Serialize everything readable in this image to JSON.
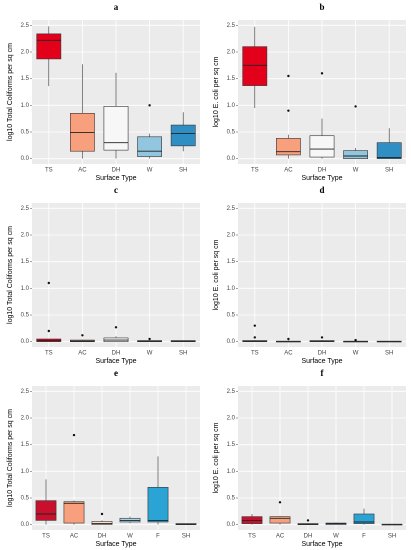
{
  "chart_data": [
    {
      "type": "box",
      "title": "a",
      "ylabel": "log10 Total Coliforms per sq cm",
      "xlabel": "Surface Type",
      "categories": [
        "TS",
        "AC",
        "DH",
        "W",
        "SH"
      ],
      "colors": [
        "#e3001b",
        "#f8a07e",
        "#f7f7f7",
        "#92c5de",
        "#2f8fc4"
      ],
      "boxes": [
        {
          "min": 1.36,
          "q1": 1.87,
          "median": 2.22,
          "q3": 2.34,
          "max": 2.48,
          "outliers": []
        },
        {
          "min": 0,
          "q1": 0.14,
          "median": 0.49,
          "q3": 0.85,
          "max": 1.77,
          "outliers": []
        },
        {
          "min": 0,
          "q1": 0.16,
          "median": 0.3,
          "q3": 0.98,
          "max": 1.61,
          "outliers": []
        },
        {
          "min": 0,
          "q1": 0.04,
          "median": 0.14,
          "q3": 0.41,
          "max": 0.47,
          "outliers": [
            1.0
          ]
        },
        {
          "min": 0.14,
          "q1": 0.24,
          "median": 0.47,
          "q3": 0.63,
          "max": 0.87,
          "outliers": []
        }
      ],
      "ylim": [
        -0.1,
        2.6
      ],
      "yticks": [
        {
          "value": 0,
          "label": "0.0"
        },
        {
          "value": 0.5,
          "label": "0.5"
        },
        {
          "value": 1,
          "label": "1.0"
        },
        {
          "value": 1.5,
          "label": "1.5"
        },
        {
          "value": 2,
          "label": "2.0"
        },
        {
          "value": 2.5,
          "label": "2.5"
        }
      ],
      "grid": true
    },
    {
      "type": "box",
      "title": "b",
      "ylabel": "log10 E. coli per sq cm",
      "xlabel": "Surface Type",
      "categories": [
        "TS",
        "AC",
        "DH",
        "W",
        "SH"
      ],
      "colors": [
        "#e3001b",
        "#f8a07e",
        "#f7f7f7",
        "#92c5de",
        "#2f8fc4"
      ],
      "boxes": [
        {
          "min": 0.95,
          "q1": 1.37,
          "median": 1.75,
          "q3": 2.1,
          "max": 2.47,
          "outliers": []
        },
        {
          "min": 0,
          "q1": 0.07,
          "median": 0.13,
          "q3": 0.38,
          "max": 0.45,
          "outliers": [
            1.55,
            0.9
          ]
        },
        {
          "min": 0,
          "q1": 0.03,
          "median": 0.18,
          "q3": 0.43,
          "max": 0.75,
          "outliers": [
            1.6
          ]
        },
        {
          "min": 0,
          "q1": 0,
          "median": 0.05,
          "q3": 0.15,
          "max": 0.2,
          "outliers": [
            0.98
          ]
        },
        {
          "min": 0,
          "q1": 0,
          "median": 0.02,
          "q3": 0.3,
          "max": 0.57,
          "outliers": []
        }
      ],
      "ylim": [
        -0.1,
        2.6
      ],
      "yticks": [
        {
          "value": 0,
          "label": "0.0"
        },
        {
          "value": 0.5,
          "label": "0.5"
        },
        {
          "value": 1,
          "label": "1.0"
        },
        {
          "value": 1.5,
          "label": "1.5"
        },
        {
          "value": 2,
          "label": "2.0"
        },
        {
          "value": 2.5,
          "label": "2.5"
        }
      ],
      "grid": true
    },
    {
      "type": "box",
      "title": "c",
      "ylabel": "log10 Total Coliforms per sq cm",
      "xlabel": "Surface Type",
      "categories": [
        "TS",
        "AC",
        "DH",
        "W",
        "SH"
      ],
      "colors": [
        "#e3001b",
        "#f8a07e",
        "#f7f7f7",
        "#92c5de",
        "#2f8fc4"
      ],
      "boxes": [
        {
          "min": 0,
          "q1": 0,
          "median": 0.02,
          "q3": 0.05,
          "max": 0.05,
          "outliers": [
            1.1,
            0.2
          ]
        },
        {
          "min": 0,
          "q1": 0,
          "median": 0.01,
          "q3": 0.03,
          "max": 0.04,
          "outliers": [
            0.12
          ]
        },
        {
          "min": 0,
          "q1": 0,
          "median": 0.03,
          "q3": 0.07,
          "max": 0.1,
          "outliers": [
            0.27
          ]
        },
        {
          "min": 0,
          "q1": 0,
          "median": 0.01,
          "q3": 0.02,
          "max": 0.02,
          "outliers": [
            0.05
          ]
        },
        {
          "min": 0,
          "q1": 0,
          "median": 0.01,
          "q3": 0.02,
          "max": 0.02,
          "outliers": []
        }
      ],
      "ylim": [
        -0.1,
        2.6
      ],
      "yticks": [
        {
          "value": 0,
          "label": "0.0"
        },
        {
          "value": 0.5,
          "label": "0.5"
        },
        {
          "value": 1,
          "label": "1.0"
        },
        {
          "value": 1.5,
          "label": "1.5"
        },
        {
          "value": 2,
          "label": "2.0"
        },
        {
          "value": 2.5,
          "label": "2.5"
        }
      ],
      "grid": true
    },
    {
      "type": "box",
      "title": "d",
      "ylabel": "log10 E. coli per sq cm",
      "xlabel": "Surface Type",
      "categories": [
        "TS",
        "AC",
        "DH",
        "W",
        "SH"
      ],
      "colors": [
        "#e3001b",
        "#f8a07e",
        "#f7f7f7",
        "#92c5de",
        "#2f8fc4"
      ],
      "boxes": [
        {
          "min": 0,
          "q1": 0,
          "median": 0.01,
          "q3": 0.02,
          "max": 0.03,
          "outliers": [
            0.3,
            0.08
          ]
        },
        {
          "min": 0,
          "q1": 0,
          "median": 0,
          "q3": 0.01,
          "max": 0.02,
          "outliers": [
            0.05
          ]
        },
        {
          "min": 0,
          "q1": 0,
          "median": 0.01,
          "q3": 0.02,
          "max": 0.03,
          "outliers": [
            0.08
          ]
        },
        {
          "min": 0,
          "q1": 0,
          "median": 0,
          "q3": 0.01,
          "max": 0.01,
          "outliers": [
            0.03
          ]
        },
        {
          "min": 0,
          "q1": 0,
          "median": 0,
          "q3": 0.01,
          "max": 0.01,
          "outliers": []
        }
      ],
      "ylim": [
        -0.1,
        2.6
      ],
      "yticks": [
        {
          "value": 0,
          "label": "0.0"
        },
        {
          "value": 0.5,
          "label": "0.5"
        },
        {
          "value": 1,
          "label": "1.0"
        },
        {
          "value": 1.5,
          "label": "1.5"
        },
        {
          "value": 2,
          "label": "2.0"
        },
        {
          "value": 2.5,
          "label": "2.5"
        }
      ],
      "grid": true
    },
    {
      "type": "box",
      "title": "e",
      "ylabel": "log10 Total Coliforms per sq cm",
      "xlabel": "Surface Type",
      "categories": [
        "TS",
        "AC",
        "DH",
        "W",
        "F",
        "SH"
      ],
      "colors": [
        "#c8102e",
        "#f8a07e",
        "#fde0cf",
        "#a6d0e4",
        "#2ba3d4",
        "#e6e6e6"
      ],
      "boxes": [
        {
          "min": 0,
          "q1": 0.08,
          "median": 0.2,
          "q3": 0.45,
          "max": 0.85,
          "outliers": []
        },
        {
          "min": 0,
          "q1": 0.03,
          "median": 0.4,
          "q3": 0.43,
          "max": 0.45,
          "outliers": [
            1.68
          ]
        },
        {
          "min": 0,
          "q1": 0,
          "median": 0.02,
          "q3": 0.06,
          "max": 0.08,
          "outliers": [
            0.2
          ]
        },
        {
          "min": 0.03,
          "q1": 0.05,
          "median": 0.08,
          "q3": 0.12,
          "max": 0.15,
          "outliers": []
        },
        {
          "min": 0,
          "q1": 0.05,
          "median": 0.08,
          "q3": 0.7,
          "max": 1.28,
          "outliers": []
        },
        {
          "min": 0,
          "q1": 0,
          "median": 0.01,
          "q3": 0.02,
          "max": 0.02,
          "outliers": []
        }
      ],
      "ylim": [
        -0.1,
        2.6
      ],
      "yticks": [
        {
          "value": 0,
          "label": "0.0"
        },
        {
          "value": 0.5,
          "label": "0.5"
        },
        {
          "value": 1,
          "label": "1.0"
        },
        {
          "value": 1.5,
          "label": "1.5"
        },
        {
          "value": 2,
          "label": "2.0"
        },
        {
          "value": 2.5,
          "label": "2.5"
        }
      ],
      "grid": true
    },
    {
      "type": "box",
      "title": "f",
      "ylabel": "log10 E. coli per sq cm",
      "xlabel": "Surface Type",
      "categories": [
        "TS",
        "AC",
        "DH",
        "W",
        "F",
        "SH"
      ],
      "colors": [
        "#c8102e",
        "#f8a07e",
        "#fde0cf",
        "#a6d0e4",
        "#2ba3d4",
        "#e6e6e6"
      ],
      "boxes": [
        {
          "min": 0,
          "q1": 0.02,
          "median": 0.08,
          "q3": 0.15,
          "max": 0.2,
          "outliers": []
        },
        {
          "min": 0,
          "q1": 0.03,
          "median": 0.12,
          "q3": 0.15,
          "max": 0.16,
          "outliers": [
            0.42
          ]
        },
        {
          "min": 0,
          "q1": 0,
          "median": 0.01,
          "q3": 0.02,
          "max": 0.03,
          "outliers": [
            0.08
          ]
        },
        {
          "min": 0,
          "q1": 0,
          "median": 0.02,
          "q3": 0.03,
          "max": 0.04,
          "outliers": []
        },
        {
          "min": 0,
          "q1": 0.02,
          "median": 0.05,
          "q3": 0.2,
          "max": 0.3,
          "outliers": []
        },
        {
          "min": 0,
          "q1": 0,
          "median": 0,
          "q3": 0.01,
          "max": 0.01,
          "outliers": []
        }
      ],
      "ylim": [
        -0.1,
        2.6
      ],
      "yticks": [
        {
          "value": 0,
          "label": "0.0"
        },
        {
          "value": 0.5,
          "label": "0.5"
        },
        {
          "value": 1,
          "label": "1.0"
        },
        {
          "value": 1.5,
          "label": "1.5"
        },
        {
          "value": 2,
          "label": "2.0"
        },
        {
          "value": 2.5,
          "label": "2.5"
        }
      ],
      "grid": true
    }
  ]
}
